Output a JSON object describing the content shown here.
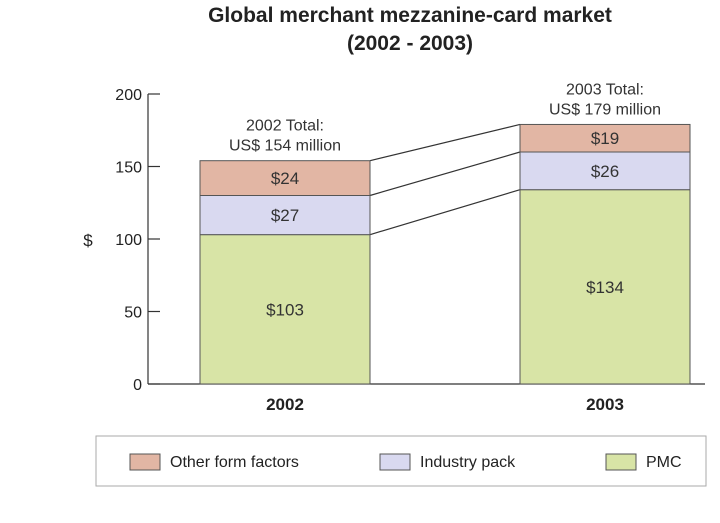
{
  "chart_data": {
    "type": "bar",
    "stacked": true,
    "title": "Global merchant mezzanine-card market",
    "subtitle": "(2002 - 2003)",
    "ylabel": "$",
    "xlabel": "",
    "ylim": [
      0,
      200
    ],
    "yticks": [
      "0",
      "50",
      "100",
      "150",
      "200"
    ],
    "categories": [
      "2002",
      "2003"
    ],
    "series": [
      {
        "name": "PMC",
        "values": [
          103,
          134
        ],
        "labels": [
          "$103",
          "$134"
        ],
        "color": "#d8e4a6"
      },
      {
        "name": "Industry pack",
        "values": [
          27,
          26
        ],
        "labels": [
          "$27",
          "$26"
        ],
        "color": "#d9d9f0"
      },
      {
        "name": "Other form factors",
        "values": [
          24,
          19
        ],
        "labels": [
          "$24",
          "$19"
        ],
        "color": "#e2b6a4"
      }
    ],
    "totals": [
      {
        "line1": "2002 Total:",
        "line2": "US$ 154 million"
      },
      {
        "line1": "2003 Total:",
        "line2": "US$ 179 million"
      }
    ],
    "legend": {
      "position": "bottom",
      "order": [
        "Other form factors",
        "Industry pack",
        "PMC"
      ]
    },
    "grid": false,
    "colors": {
      "bar_outline": "#555555",
      "axis": "#333333",
      "legend_border": "#aaaaaa"
    }
  }
}
